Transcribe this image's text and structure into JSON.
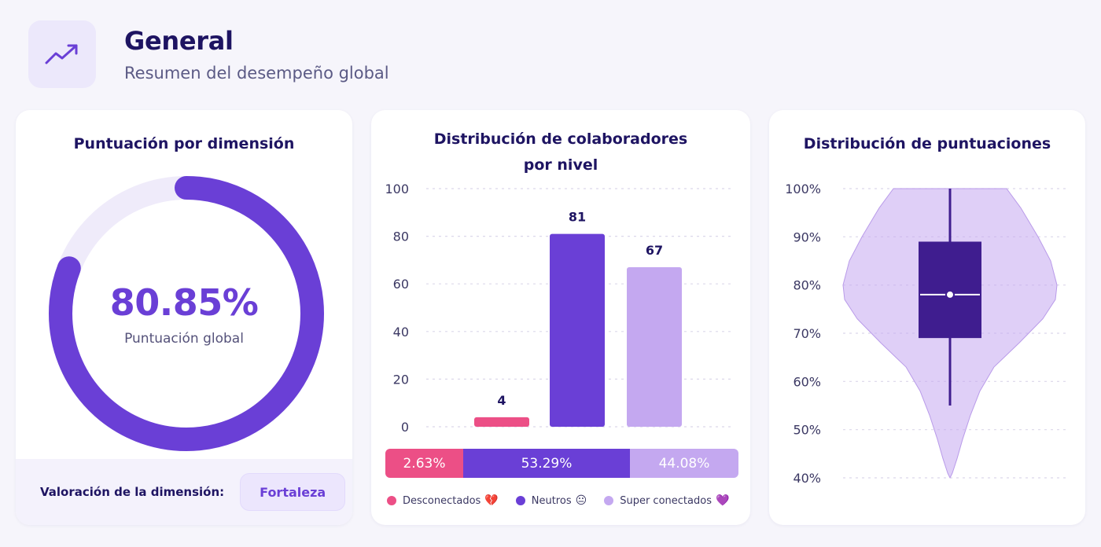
{
  "header": {
    "icon": "trending-up-icon",
    "title": "General",
    "subtitle": "Resumen del desempeño global"
  },
  "colors": {
    "accent": "#6a3fd6",
    "dark_purple": "#3f1d8f",
    "light_purple": "#c4a8f0",
    "pink": "#ec4f86",
    "track": "#efebfa"
  },
  "dimension_card": {
    "title": "Puntuación por dimensión",
    "score": "80.85%",
    "score_fraction": 0.8085,
    "score_label": "Puntuación global",
    "footer_label": "Valoración de la dimensión:",
    "badge": "Fortaleza"
  },
  "distribution_card": {
    "title_line1": "Distribución de colaboradores",
    "title_line2": "por nivel",
    "percentages": [
      {
        "label": "2.63%",
        "value": 2.63,
        "color": "#ec4f86"
      },
      {
        "label": "53.29%",
        "value": 53.29,
        "color": "#6a3fd6"
      },
      {
        "label": "44.08%",
        "value": 44.08,
        "color": "#c4a8f0"
      }
    ],
    "legend": [
      {
        "label": "Desconectados",
        "emoji": "💔",
        "color": "#ec4f86"
      },
      {
        "label": "Neutros",
        "emoji": "😐",
        "color": "#6a3fd6"
      },
      {
        "label": "Super conectados",
        "emoji": "💜",
        "color": "#c4a8f0"
      }
    ]
  },
  "scores_card": {
    "title": "Distribución de puntuaciones"
  },
  "chart_data": [
    {
      "type": "bar",
      "categories": [
        "Desconectados",
        "Neutros",
        "Super conectados"
      ],
      "values": [
        4,
        81,
        67
      ],
      "value_labels": [
        "4",
        "81",
        "67"
      ],
      "colors": [
        "#ec4f86",
        "#6a3fd6",
        "#c4a8f0"
      ],
      "ylim": [
        0,
        100
      ],
      "yticks": [
        0,
        20,
        40,
        60,
        80,
        100
      ],
      "ytick_labels": [
        "0",
        "20",
        "40",
        "60",
        "80",
        "100"
      ],
      "grid": true
    },
    {
      "type": "violin",
      "ylim": [
        40,
        100
      ],
      "yticks": [
        40,
        50,
        60,
        70,
        80,
        90,
        100
      ],
      "ytick_labels": [
        "40%",
        "50%",
        "60%",
        "70%",
        "80%",
        "90%",
        "100%"
      ],
      "whisker_low": 55,
      "q1": 69,
      "median": 78,
      "q3": 89,
      "whisker_high": 100,
      "grid": true
    }
  ]
}
